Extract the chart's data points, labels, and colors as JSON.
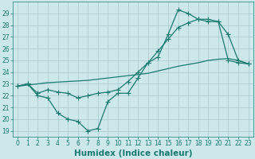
{
  "line1_x": [
    0,
    1,
    2,
    3,
    4,
    5,
    6,
    7,
    8,
    9,
    10,
    11,
    12,
    13,
    14,
    15,
    16,
    17,
    18,
    19,
    20,
    21,
    22,
    23
  ],
  "line1_y": [
    22.8,
    23.0,
    22.0,
    21.8,
    20.5,
    20.0,
    19.8,
    19.0,
    19.2,
    21.5,
    22.2,
    22.2,
    23.5,
    24.8,
    25.3,
    27.2,
    29.3,
    29.0,
    28.5,
    28.3,
    28.3,
    25.0,
    24.8,
    24.7
  ],
  "line2_x": [
    0,
    1,
    2,
    3,
    4,
    5,
    6,
    7,
    8,
    9,
    10,
    11,
    12,
    13,
    14,
    15,
    16,
    17,
    18,
    19,
    20,
    21,
    22,
    23
  ],
  "line2_y": [
    22.8,
    23.0,
    22.2,
    22.5,
    22.3,
    22.2,
    21.8,
    22.0,
    22.2,
    22.3,
    22.5,
    23.2,
    24.0,
    24.8,
    25.8,
    26.8,
    27.8,
    28.2,
    28.5,
    28.5,
    28.3,
    27.2,
    25.0,
    24.7
  ],
  "line3_x": [
    0,
    1,
    2,
    3,
    4,
    5,
    6,
    7,
    8,
    9,
    10,
    11,
    12,
    13,
    14,
    15,
    16,
    17,
    18,
    19,
    20,
    21,
    22,
    23
  ],
  "line3_y": [
    22.8,
    22.9,
    23.0,
    23.1,
    23.15,
    23.2,
    23.25,
    23.3,
    23.4,
    23.5,
    23.6,
    23.7,
    23.8,
    23.9,
    24.1,
    24.3,
    24.5,
    24.65,
    24.8,
    25.0,
    25.1,
    25.15,
    25.0,
    24.7
  ],
  "line_color": "#1a7a6e",
  "bg_color": "#cce8ea",
  "grid_color": "#aac8cc",
  "xlabel": "Humidex (Indice chaleur)",
  "ylim": [
    18.5,
    30.0
  ],
  "xlim": [
    -0.5,
    23.5
  ],
  "yticks": [
    19,
    20,
    21,
    22,
    23,
    24,
    25,
    26,
    27,
    28,
    29
  ],
  "xticks": [
    0,
    1,
    2,
    3,
    4,
    5,
    6,
    7,
    8,
    9,
    10,
    11,
    12,
    13,
    14,
    15,
    16,
    17,
    18,
    19,
    20,
    21,
    22,
    23
  ],
  "tick_fontsize": 5.5,
  "xlabel_fontsize": 7.5,
  "markersize": 3.0
}
